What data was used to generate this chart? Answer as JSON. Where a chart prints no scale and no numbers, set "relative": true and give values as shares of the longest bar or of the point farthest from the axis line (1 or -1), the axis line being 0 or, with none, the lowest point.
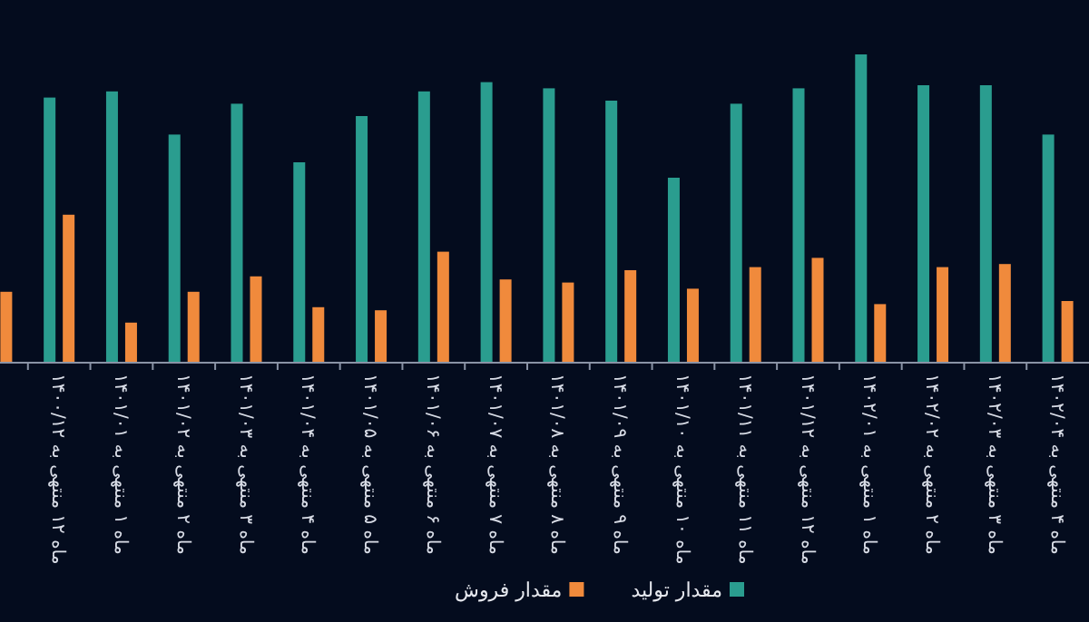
{
  "chart_data": {
    "type": "bar",
    "relative": true,
    "legend": "bottom",
    "categories": [
      null,
      "ماه ۱۲ منتهی به ۱۴۰۰/۱۲",
      "ماه ۱ منتهی به ۱۴۰۱/۰۱",
      "ماه ۲ منتهی به ۱۴۰۱/۰۲",
      "ماه ۳ منتهی به ۱۴۰۱/۰۳",
      "ماه ۴ منتهی به ۱۴۰۱/۰۴",
      "ماه ۵ منتهی به ۱۴۰۱/۰۵",
      "ماه ۶ منتهی به ۱۴۰۱/۰۶",
      "ماه ۷ منتهی به ۱۴۰۱/۰۷",
      "ماه ۸ منتهی به ۱۴۰۱/۰۸",
      "ماه ۹ منتهی به ۱۴۰۱/۰۹",
      "ماه ۱۰ منتهی به ۱۴۰۱/۱۰",
      "ماه ۱۱ منتهی به ۱۴۰۱/۱۱",
      "ماه ۱۲ منتهی به ۱۴۰۱/۱۲",
      "ماه ۱ منتهی به ۱۴۰۲/۰۱",
      "ماه ۲ منتهی به ۱۴۰۲/۰۲",
      "ماه ۳ منتهی به ۱۴۰۲/۰۳",
      "ماه ۴ منتهی به ۱۴۰۲/۰۴"
    ],
    "series": [
      {
        "name": "مقدار تولید",
        "color": "#2a9d8f",
        "values": [
          null,
          0.86,
          0.88,
          0.74,
          0.84,
          0.65,
          0.8,
          0.88,
          0.91,
          0.89,
          0.85,
          0.6,
          0.84,
          0.89,
          1,
          0.9,
          0.9,
          0.74
        ]
      },
      {
        "name": "مقدار فروش",
        "color": "#f08a3c",
        "values": [
          0.23,
          0.48,
          0.13,
          0.23,
          0.28,
          0.18,
          0.17,
          0.36,
          0.27,
          0.26,
          0.3,
          0.24,
          0.31,
          0.34,
          0.19,
          0.31,
          0.32,
          0.2
        ]
      }
    ]
  }
}
